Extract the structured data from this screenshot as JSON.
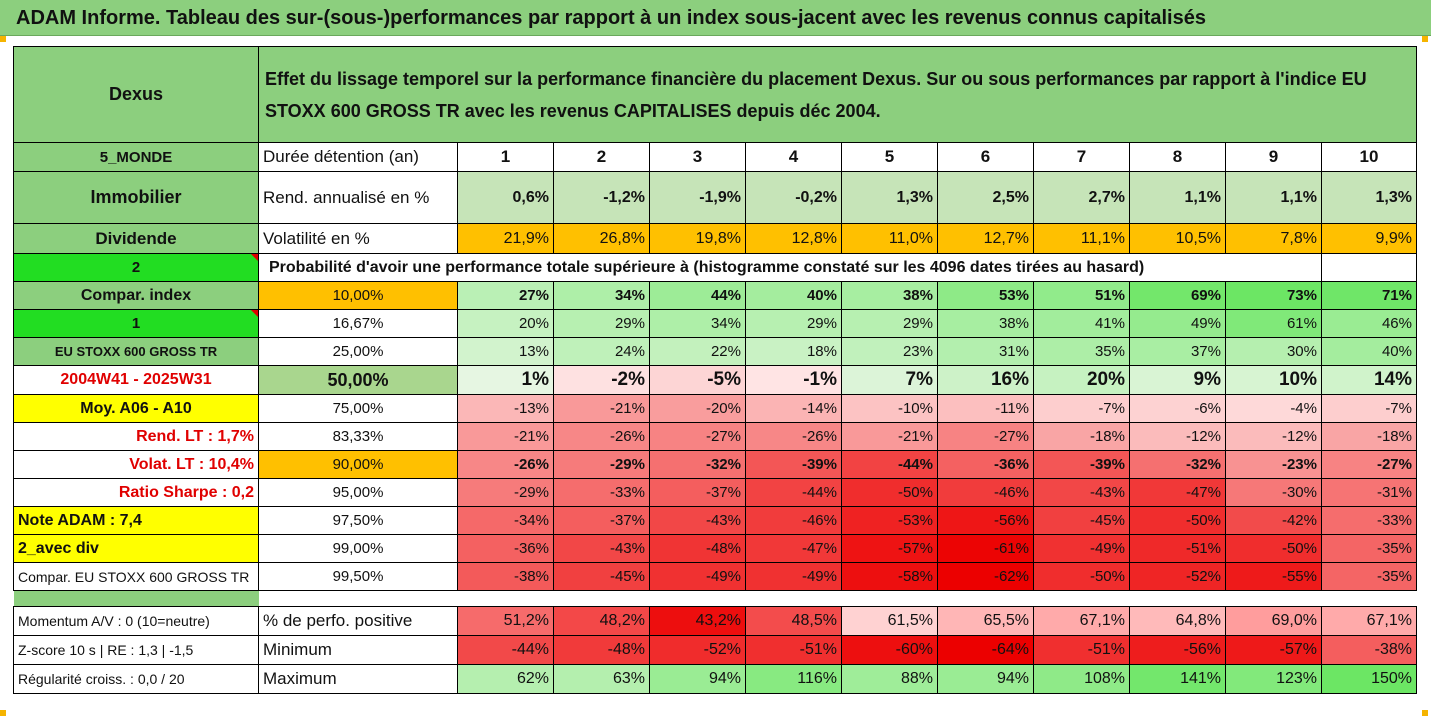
{
  "title": "ADAM Informe. Tableau des sur-(sous-)performances par rapport à un index sous-jacent avec les revenus connus capitalisés",
  "header": {
    "fund": "Dexus",
    "description": "Effet du lissage temporel sur la performance financière du placement Dexus. Sur ou sous performances par rapport à l'indice EU STOXX 600 GROSS TR avec les revenus CAPITALISES depuis déc 2004."
  },
  "years_row": {
    "left": "5_MONDE",
    "label": "Durée détention (an)",
    "values": [
      "1",
      "2",
      "3",
      "4",
      "5",
      "6",
      "7",
      "8",
      "9",
      "10"
    ]
  },
  "rend_row": {
    "left": "Immobilier",
    "label": "Rend. annualisé en %",
    "values": [
      "0,6%",
      "-1,2%",
      "-1,9%",
      "-0,2%",
      "1,3%",
      "2,5%",
      "2,7%",
      "1,1%",
      "1,1%",
      "1,3%"
    ]
  },
  "vol_row": {
    "left": "Dividende",
    "label": "Volatilité en %",
    "values": [
      "21,9%",
      "26,8%",
      "19,8%",
      "12,8%",
      "11,0%",
      "12,7%",
      "11,1%",
      "10,5%",
      "7,8%",
      "9,9%"
    ]
  },
  "prob_row": {
    "left": "2",
    "text": "Probabilité d'avoir une performance totale supérieure à (histogramme constaté sur les 4096 dates tirées au hasard)"
  },
  "prob_rows": [
    {
      "left": "Compar. index",
      "pct": "10,00%",
      "values": [
        "27%",
        "34%",
        "44%",
        "40%",
        "38%",
        "53%",
        "51%",
        "69%",
        "73%",
        "71%"
      ]
    },
    {
      "left": "1",
      "pct": "16,67%",
      "values": [
        "20%",
        "29%",
        "34%",
        "29%",
        "29%",
        "38%",
        "41%",
        "49%",
        "61%",
        "46%"
      ]
    },
    {
      "left": "EU STOXX 600 GROSS TR",
      "pct": "25,00%",
      "values": [
        "13%",
        "24%",
        "22%",
        "18%",
        "23%",
        "31%",
        "35%",
        "37%",
        "30%",
        "40%"
      ]
    },
    {
      "left": "2004W41 - 2025W31",
      "pct": "50,00%",
      "values": [
        "1%",
        "-2%",
        "-5%",
        "-1%",
        "7%",
        "16%",
        "20%",
        "9%",
        "10%",
        "14%"
      ]
    },
    {
      "left": "Moy. A06 - A10",
      "pct": "75,00%",
      "values": [
        "-13%",
        "-21%",
        "-20%",
        "-14%",
        "-10%",
        "-11%",
        "-7%",
        "-6%",
        "-4%",
        "-7%"
      ]
    },
    {
      "left": "Rend. LT :    1,7%",
      "pct": "83,33%",
      "values": [
        "-21%",
        "-26%",
        "-27%",
        "-26%",
        "-21%",
        "-27%",
        "-18%",
        "-12%",
        "-12%",
        "-18%"
      ]
    },
    {
      "left": "Volat. LT :   10,4%",
      "pct": "90,00%",
      "values": [
        "-26%",
        "-29%",
        "-32%",
        "-39%",
        "-44%",
        "-36%",
        "-39%",
        "-32%",
        "-23%",
        "-27%"
      ]
    },
    {
      "left": "Ratio Sharpe :    0,2",
      "pct": "95,00%",
      "values": [
        "-29%",
        "-33%",
        "-37%",
        "-44%",
        "-50%",
        "-46%",
        "-43%",
        "-47%",
        "-30%",
        "-31%"
      ]
    },
    {
      "left": "Note ADAM : 7,4",
      "pct": "97,50%",
      "values": [
        "-34%",
        "-37%",
        "-43%",
        "-46%",
        "-53%",
        "-56%",
        "-45%",
        "-50%",
        "-42%",
        "-33%"
      ]
    },
    {
      "left": "2_avec div",
      "pct": "99,00%",
      "values": [
        "-36%",
        "-43%",
        "-48%",
        "-47%",
        "-57%",
        "-61%",
        "-49%",
        "-51%",
        "-50%",
        "-35%"
      ]
    },
    {
      "left": "Compar. EU STOXX 600 GROSS TR",
      "pct": "99,50%",
      "values": [
        "-38%",
        "-45%",
        "-49%",
        "-49%",
        "-58%",
        "-62%",
        "-50%",
        "-52%",
        "-55%",
        "-35%"
      ]
    }
  ],
  "bottom_rows": [
    {
      "left": "Momentum A/V : 0 (10=neutre)",
      "label": "% de perfo. positive",
      "values": [
        "51,2%",
        "48,2%",
        "43,2%",
        "48,5%",
        "61,5%",
        "65,5%",
        "67,1%",
        "64,8%",
        "69,0%",
        "67,1%"
      ]
    },
    {
      "left": "Z-score 10 s  |  RE : 1,3  |  -1,5",
      "label": "Minimum",
      "values": [
        "-44%",
        "-48%",
        "-52%",
        "-51%",
        "-60%",
        "-64%",
        "-51%",
        "-56%",
        "-57%",
        "-38%"
      ]
    },
    {
      "left": "Régularité croiss. : 0,0 / 20",
      "label": "Maximum",
      "values": [
        "62%",
        "63%",
        "94%",
        "116%",
        "88%",
        "94%",
        "108%",
        "141%",
        "123%",
        "150%"
      ]
    }
  ],
  "colors": {
    "header_green": "#8ccf7e",
    "bright_green": "#22dd22",
    "orange": "#ffc000",
    "yellow": "#ffff00",
    "red_text": "#e00000"
  }
}
